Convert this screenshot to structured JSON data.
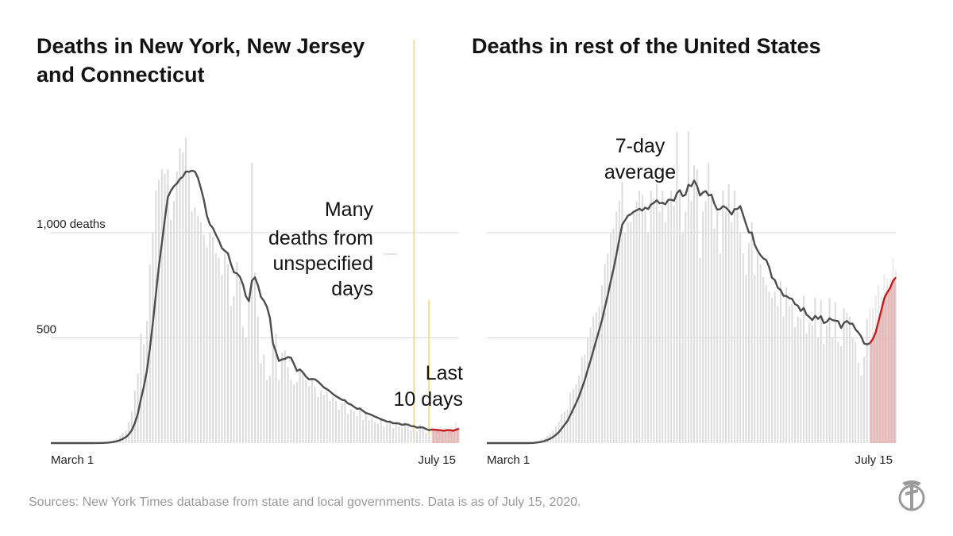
{
  "title_left": "Deaths in New York, New Jersey and Connecticut",
  "title_right": "Deaths in rest of the United States",
  "source": "Sources: New York Times database from state and local governments. Data is as of July 15, 2020.",
  "colors": {
    "bar": "#dcdcdc",
    "avg": "#4d4d4d",
    "recent": "#c51b1b",
    "recent_fill": "#e8a4a4",
    "grid": "#d8d8d8",
    "yellow": "#f5dc8a"
  },
  "chart_data": [
    {
      "type": "bar",
      "title": "Deaths in New York, New Jersey and Connecticut",
      "x_start_label": "March 1",
      "x_end_label": "July 15",
      "y_ticks": [
        {
          "value": 500,
          "label": "500"
        },
        {
          "value": 1000,
          "label": "1,000 deaths"
        }
      ],
      "ylim": [
        0,
        1520
      ],
      "annotations": [
        "Many",
        "deaths from",
        "unspecified",
        "days",
        "Last",
        "10 days"
      ],
      "spikes": [
        {
          "day": 121,
          "value": 3800
        },
        {
          "day": 126,
          "value": 680
        }
      ],
      "daily": [
        0,
        0,
        0,
        0,
        0,
        0,
        0,
        0,
        0,
        0,
        0,
        0,
        0,
        0,
        0,
        1,
        1,
        2,
        4,
        6,
        10,
        16,
        22,
        34,
        50,
        60,
        100,
        150,
        250,
        330,
        520,
        470,
        580,
        850,
        1000,
        1200,
        1250,
        1300,
        1280,
        1300,
        1060,
        1150,
        1290,
        1400,
        1380,
        1450,
        1290,
        1100,
        1120,
        1080,
        1050,
        990,
        930,
        1000,
        980,
        900,
        880,
        800,
        900,
        850,
        650,
        700,
        860,
        770,
        550,
        500,
        690,
        1330,
        810,
        600,
        380,
        420,
        300,
        320,
        490,
        520,
        300,
        430,
        440,
        360,
        300,
        280,
        290,
        350,
        330,
        300,
        270,
        310,
        270,
        220,
        250,
        230,
        240,
        200,
        220,
        200,
        160,
        190,
        210,
        140,
        160,
        150,
        130,
        170,
        110,
        140,
        110,
        120,
        100,
        90,
        120,
        80,
        90,
        110,
        70,
        100,
        80,
        75,
        100,
        80,
        60,
        65,
        55,
        90,
        70,
        50,
        40,
        80,
        60,
        45,
        80,
        55,
        70,
        40,
        60,
        100,
        70
      ]
    },
    {
      "type": "bar",
      "title": "Deaths in rest of the United States",
      "x_start_label": "March 1",
      "x_end_label": "July 15",
      "y_ticks": [
        {
          "value": 500,
          "label": ""
        },
        {
          "value": 1000,
          "label": ""
        }
      ],
      "ylim": [
        0,
        1520
      ],
      "annotations": [
        "7-day",
        "average"
      ],
      "daily": [
        0,
        0,
        0,
        0,
        0,
        0,
        0,
        0,
        0,
        0,
        0,
        0,
        0,
        0,
        0,
        2,
        4,
        8,
        12,
        18,
        25,
        35,
        45,
        60,
        80,
        100,
        140,
        150,
        160,
        240,
        260,
        280,
        320,
        410,
        420,
        500,
        550,
        600,
        620,
        650,
        750,
        850,
        900,
        1000,
        1020,
        1100,
        1150,
        1240,
        1000,
        1050,
        1050,
        1100,
        1150,
        1200,
        1180,
        1100,
        1000,
        1200,
        1160,
        1230,
        1100,
        1200,
        1050,
        1150,
        1200,
        1130,
        1480,
        1200,
        1000,
        1100,
        1480,
        1150,
        1320,
        1300,
        880,
        1100,
        1150,
        1330,
        1180,
        1020,
        1100,
        900,
        1200,
        1100,
        1230,
        1050,
        1200,
        1100,
        1000,
        900,
        800,
        950,
        1050,
        800,
        900,
        850,
        790,
        750,
        720,
        690,
        720,
        650,
        770,
        600,
        740,
        650,
        660,
        550,
        600,
        590,
        700,
        520,
        570,
        560,
        690,
        500,
        680,
        470,
        560,
        690,
        500,
        670,
        480,
        460,
        640,
        620,
        600,
        500,
        480,
        380,
        320,
        410,
        590,
        640,
        640,
        700,
        750,
        700,
        800,
        780,
        780,
        880,
        820
      ]
    }
  ]
}
